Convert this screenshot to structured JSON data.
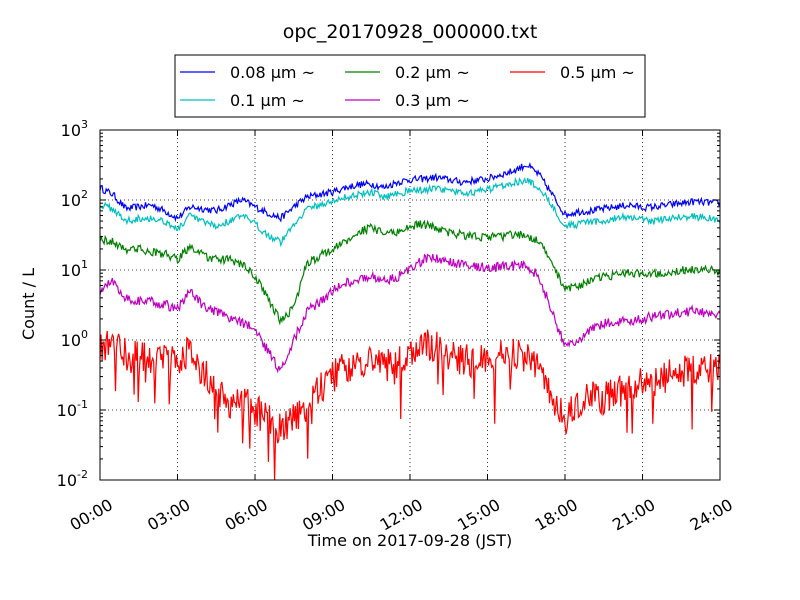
{
  "chart_data": {
    "type": "line",
    "title": "opc_20170928_000000.txt",
    "xlabel": "Time on 2017-09-28 (JST)",
    "ylabel": "Count / L",
    "yscale": "log",
    "ylim": [
      0.01,
      1000
    ],
    "xlim_hours": [
      0,
      24
    ],
    "grid": "dotted",
    "legend_position": "top-outside",
    "x_tick_labels": [
      "00:00",
      "03:00",
      "06:00",
      "09:00",
      "12:00",
      "15:00",
      "18:00",
      "21:00",
      "24:00"
    ],
    "y_tick_labels": [
      {
        "base": "10",
        "exp": "-2"
      },
      {
        "base": "10",
        "exp": "-1"
      },
      {
        "base": "10",
        "exp": "0"
      },
      {
        "base": "10",
        "exp": "1"
      },
      {
        "base": "10",
        "exp": "2"
      },
      {
        "base": "10",
        "exp": "3"
      }
    ],
    "x_hours": [
      0.0,
      0.5,
      1.0,
      1.5,
      2.0,
      2.5,
      3.0,
      3.5,
      4.0,
      4.5,
      5.0,
      5.5,
      6.0,
      6.5,
      7.0,
      7.5,
      8.0,
      8.5,
      9.0,
      9.5,
      10.0,
      10.5,
      11.0,
      11.5,
      12.0,
      12.5,
      13.0,
      13.5,
      14.0,
      14.5,
      15.0,
      15.5,
      16.0,
      16.5,
      17.0,
      17.5,
      18.0,
      18.5,
      19.0,
      19.5,
      20.0,
      20.5,
      21.0,
      21.5,
      22.0,
      22.5,
      23.0,
      23.5,
      24.0
    ],
    "series": [
      {
        "name": "0.08 μm ~",
        "color": "#0000ff",
        "values": [
          150,
          120,
          75,
          80,
          85,
          70,
          55,
          80,
          75,
          70,
          85,
          100,
          80,
          65,
          55,
          80,
          110,
          120,
          130,
          150,
          165,
          170,
          150,
          180,
          195,
          200,
          210,
          195,
          180,
          190,
          200,
          230,
          260,
          320,
          230,
          120,
          62,
          68,
          70,
          75,
          80,
          85,
          78,
          80,
          85,
          90,
          95,
          92,
          90
        ]
      },
      {
        "name": "0.1 μm ~",
        "color": "#00c0c0",
        "values": [
          85,
          75,
          50,
          55,
          55,
          50,
          38,
          60,
          48,
          42,
          50,
          60,
          45,
          32,
          25,
          45,
          75,
          85,
          95,
          110,
          120,
          130,
          110,
          125,
          135,
          140,
          145,
          135,
          125,
          130,
          140,
          160,
          180,
          190,
          150,
          85,
          42,
          45,
          48,
          50,
          55,
          58,
          52,
          50,
          55,
          58,
          58,
          55,
          52
        ]
      },
      {
        "name": "0.2 μm ~",
        "color": "#008000",
        "values": [
          28,
          25,
          20,
          20,
          18,
          17,
          14,
          22,
          16,
          14,
          14,
          12,
          8,
          4,
          1.8,
          3,
          12,
          16,
          20,
          25,
          35,
          40,
          33,
          35,
          42,
          45,
          40,
          34,
          32,
          30,
          30,
          30,
          32,
          32,
          25,
          12,
          5.5,
          6,
          7,
          8,
          8.5,
          9,
          9,
          9,
          9.5,
          10,
          10,
          10,
          9.5
        ]
      },
      {
        "name": "0.3 μm ~",
        "color": "#c000c0",
        "values": [
          5,
          7,
          4,
          3.6,
          3.5,
          3.2,
          2.8,
          5,
          3,
          2.5,
          2,
          1.8,
          1.4,
          0.7,
          0.35,
          1,
          2.5,
          3.5,
          5,
          6.5,
          7.5,
          8,
          7,
          8,
          10,
          14,
          15,
          13,
          12,
          11.5,
          11,
          11,
          11.5,
          12,
          8,
          2.5,
          0.8,
          1.0,
          1.4,
          1.7,
          1.8,
          1.9,
          2.0,
          2.2,
          2.3,
          2.5,
          2.6,
          2.4,
          2.3
        ]
      },
      {
        "name": "0.5 μm ~",
        "color": "#ff0000",
        "values": [
          0.8,
          0.9,
          0.6,
          0.55,
          0.55,
          0.5,
          0.45,
          0.7,
          0.35,
          0.2,
          0.12,
          0.15,
          0.1,
          0.07,
          0.05,
          0.08,
          0.12,
          0.2,
          0.3,
          0.4,
          0.45,
          0.5,
          0.4,
          0.5,
          0.7,
          0.9,
          0.8,
          0.6,
          0.55,
          0.5,
          0.5,
          0.6,
          0.6,
          0.55,
          0.4,
          0.15,
          0.07,
          0.12,
          0.15,
          0.15,
          0.18,
          0.2,
          0.25,
          0.25,
          0.3,
          0.35,
          0.4,
          0.4,
          0.4
        ]
      }
    ]
  }
}
